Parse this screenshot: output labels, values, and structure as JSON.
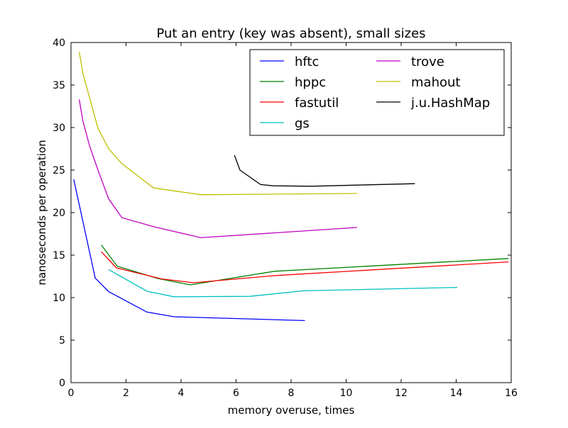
{
  "chart_data": {
    "type": "line",
    "title": "Put an entry (key was absent), small sizes",
    "xlabel": "memory overuse, times",
    "ylabel": "nanoseconds per operation",
    "xlim": [
      0,
      16
    ],
    "ylim": [
      0,
      40
    ],
    "xticks": [
      0,
      2,
      4,
      6,
      8,
      10,
      12,
      14,
      16
    ],
    "yticks": [
      0,
      5,
      10,
      15,
      20,
      25,
      30,
      35,
      40
    ],
    "grid": false,
    "legend_placement": "top-right",
    "legend_columns": 2,
    "series": [
      {
        "name": "hftc",
        "color": "#0000ff",
        "points": [
          [
            0.1,
            23.9
          ],
          [
            0.88,
            12.3
          ],
          [
            1.37,
            10.7
          ],
          [
            2.76,
            8.3
          ],
          [
            3.74,
            7.75
          ],
          [
            8.5,
            7.3
          ]
        ]
      },
      {
        "name": "hppc",
        "color": "#008000",
        "points": [
          [
            1.1,
            16.2
          ],
          [
            1.68,
            13.7
          ],
          [
            3.15,
            12.25
          ],
          [
            4.34,
            11.5
          ],
          [
            7.4,
            13.1
          ],
          [
            15.9,
            14.6
          ]
        ]
      },
      {
        "name": "fastutil",
        "color": "#ff0000",
        "points": [
          [
            1.1,
            15.4
          ],
          [
            1.65,
            13.5
          ],
          [
            3.3,
            12.2
          ],
          [
            4.45,
            11.75
          ],
          [
            7.45,
            12.6
          ],
          [
            15.9,
            14.2
          ]
        ]
      },
      {
        "name": "gs",
        "color": "#00bfbf",
        "points": [
          [
            1.37,
            13.3
          ],
          [
            2.76,
            10.75
          ],
          [
            3.74,
            10.1
          ],
          [
            6.5,
            10.15
          ],
          [
            8.45,
            10.8
          ],
          [
            14.04,
            11.2
          ]
        ]
      },
      {
        "name": "trove",
        "color": "#bf00bf",
        "points": [
          [
            0.3,
            33.3
          ],
          [
            0.43,
            30.8
          ],
          [
            0.67,
            27.9
          ],
          [
            0.98,
            25.0
          ],
          [
            1.37,
            21.6
          ],
          [
            1.85,
            19.4
          ],
          [
            3.05,
            18.3
          ],
          [
            4.72,
            17.05
          ],
          [
            10.4,
            18.25
          ]
        ]
      },
      {
        "name": "mahout",
        "color": "#bfbf00",
        "points": [
          [
            0.3,
            38.9
          ],
          [
            0.43,
            36.4
          ],
          [
            0.98,
            29.9
          ],
          [
            1.37,
            27.5
          ],
          [
            1.85,
            25.75
          ],
          [
            3.0,
            22.9
          ],
          [
            4.72,
            22.1
          ],
          [
            10.4,
            22.25
          ]
        ]
      },
      {
        "name": "j.u.HashMap",
        "color": "#000000",
        "points": [
          [
            5.94,
            26.75
          ],
          [
            6.14,
            25.0
          ],
          [
            6.89,
            23.3
          ],
          [
            7.35,
            23.15
          ],
          [
            8.72,
            23.1
          ],
          [
            12.5,
            23.4
          ]
        ]
      }
    ]
  }
}
